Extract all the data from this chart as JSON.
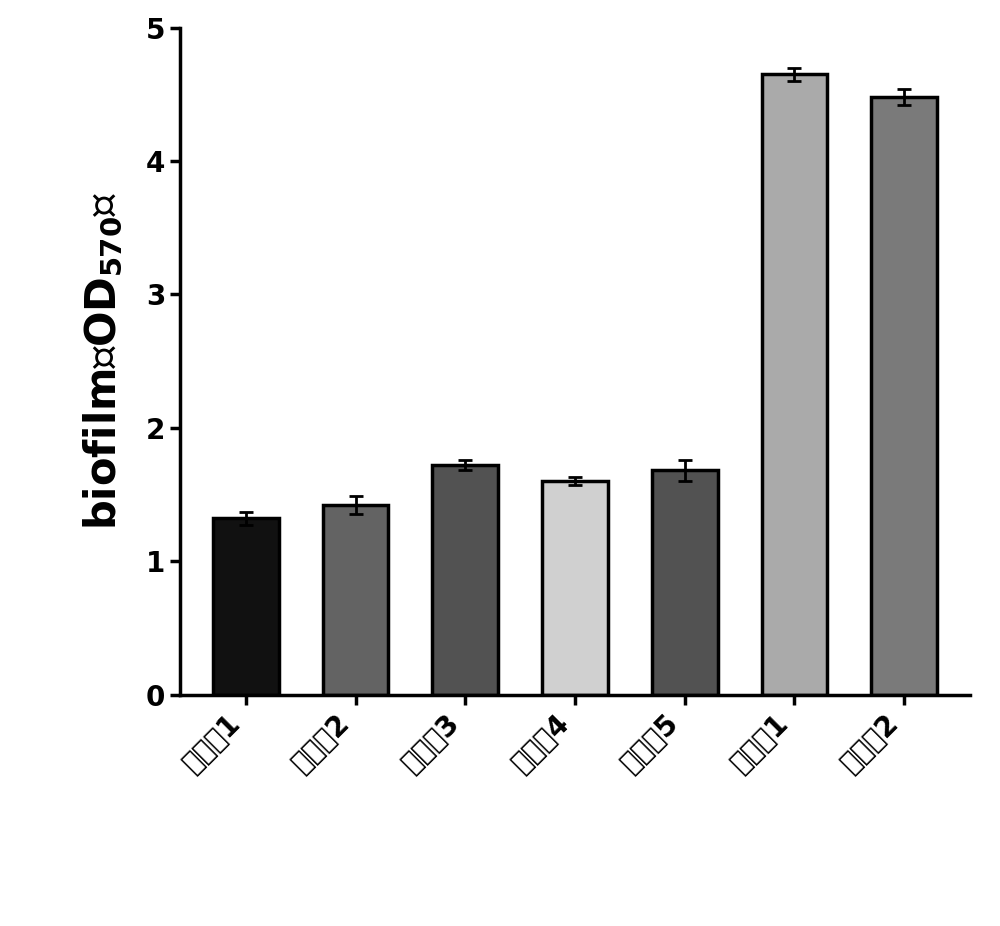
{
  "categories": [
    "实施例1",
    "实施例2",
    "实施例3",
    "实施例4",
    "实施例5",
    "对比例1",
    "对比例2"
  ],
  "values": [
    1.32,
    1.42,
    1.72,
    1.6,
    1.68,
    4.65,
    4.48
  ],
  "errors": [
    0.05,
    0.07,
    0.04,
    0.03,
    0.08,
    0.05,
    0.06
  ],
  "bar_colors": [
    "#111111",
    "#636363",
    "#525252",
    "#d0d0d0",
    "#525252",
    "#aaaaaa",
    "#7a7a7a"
  ],
  "bar_edgecolor": "#000000",
  "ylim": [
    0,
    5
  ],
  "yticks": [
    0,
    1,
    2,
    3,
    4,
    5
  ],
  "tick_fontsize": 20,
  "ylabel_fontsize": 30,
  "subscript_fontsize": 20,
  "bar_linewidth": 2.5,
  "figure_bg": "#ffffff",
  "axes_bg": "#ffffff"
}
